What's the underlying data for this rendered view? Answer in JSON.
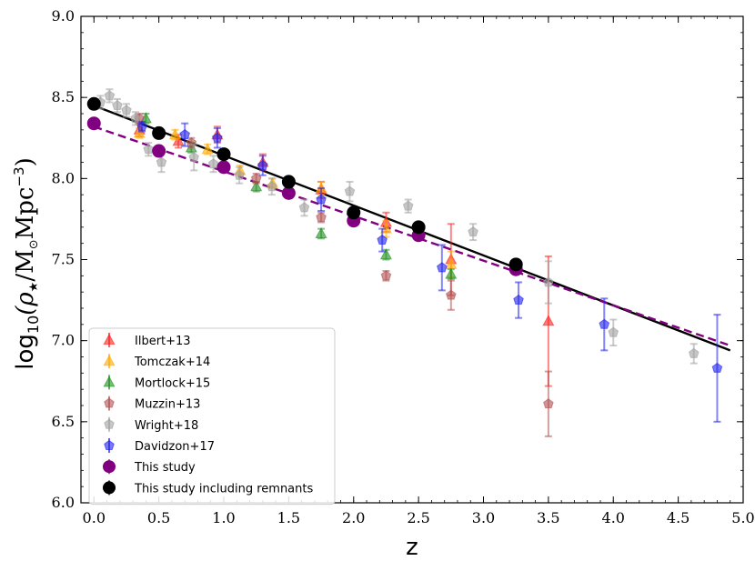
{
  "chart_data": {
    "type": "scatter",
    "title": "",
    "xlabel": "z",
    "ylabel": "log10(ρ★ / M⊙ Mpc⁻³)",
    "ylabel_main": "log",
    "ylabel_sub": "10",
    "ylabel_open": "(ρ",
    "ylabel_star": "★",
    "ylabel_mid": "/M",
    "ylabel_sun": "⊙",
    "ylabel_unit": "Mpc",
    "ylabel_exp": "−3",
    "ylabel_close": ")",
    "xlim": [
      -0.1,
      5.0
    ],
    "ylim": [
      6.0,
      9.0
    ],
    "xticks": [
      0.0,
      0.5,
      1.0,
      1.5,
      2.0,
      2.5,
      3.0,
      3.5,
      4.0,
      4.5,
      5.0
    ],
    "xtick_labels": [
      "0.0",
      "0.5",
      "1.0",
      "1.5",
      "2.0",
      "2.5",
      "3.0",
      "3.5",
      "4.0",
      "4.5",
      "5.0"
    ],
    "yticks": [
      6.0,
      6.5,
      7.0,
      7.5,
      8.0,
      8.5,
      9.0
    ],
    "ytick_labels": [
      "6.0",
      "6.5",
      "7.0",
      "7.5",
      "8.0",
      "8.5",
      "9.0"
    ],
    "grid": false,
    "legend_position": "lower-left",
    "fit_lines": [
      {
        "name": "fit including remnants",
        "color": "#000000",
        "style": "solid",
        "x": [
          0.0,
          4.9
        ],
        "y": [
          8.45,
          6.94
        ]
      },
      {
        "name": "fit this study",
        "color": "#800080",
        "style": "dashed",
        "x": [
          0.0,
          4.9
        ],
        "y": [
          8.32,
          6.97
        ]
      }
    ],
    "series": [
      {
        "name": "Ilbert+13",
        "marker": "triangle",
        "color": "#ff2020",
        "points": [
          {
            "x": 0.35,
            "y": 8.3,
            "err": 0.04
          },
          {
            "x": 0.65,
            "y": 8.23,
            "err": 0.04
          },
          {
            "x": 0.95,
            "y": 8.27,
            "err": 0.05
          },
          {
            "x": 1.3,
            "y": 8.1,
            "err": 0.05
          },
          {
            "x": 1.75,
            "y": 7.93,
            "err": 0.05
          },
          {
            "x": 2.25,
            "y": 7.73,
            "err": 0.06
          },
          {
            "x": 2.75,
            "y": 7.5,
            "err": 0.22
          },
          {
            "x": 3.5,
            "y": 7.12,
            "err": 0.4
          }
        ]
      },
      {
        "name": "Tomczak+14",
        "marker": "triangle",
        "color": "#ffaa00",
        "points": [
          {
            "x": 0.35,
            "y": 8.28,
            "err": 0.03
          },
          {
            "x": 0.625,
            "y": 8.27,
            "err": 0.03
          },
          {
            "x": 0.875,
            "y": 8.18,
            "err": 0.03
          },
          {
            "x": 1.125,
            "y": 8.05,
            "err": 0.03
          },
          {
            "x": 1.375,
            "y": 7.97,
            "err": 0.03
          },
          {
            "x": 1.75,
            "y": 7.94,
            "err": 0.04
          },
          {
            "x": 2.25,
            "y": 7.69,
            "err": 0.05
          },
          {
            "x": 2.75,
            "y": 7.47,
            "err": 0.08
          }
        ]
      },
      {
        "name": "Mortlock+15",
        "marker": "triangle",
        "color": "#209020",
        "points": [
          {
            "x": 0.4,
            "y": 8.37,
            "err": 0.03
          },
          {
            "x": 0.75,
            "y": 8.19,
            "err": 0.03
          },
          {
            "x": 1.25,
            "y": 7.95,
            "err": 0.03
          },
          {
            "x": 1.75,
            "y": 7.66,
            "err": 0.03
          },
          {
            "x": 2.25,
            "y": 7.53,
            "err": 0.03
          },
          {
            "x": 2.75,
            "y": 7.41,
            "err": 0.03
          }
        ]
      },
      {
        "name": "Muzzin+13",
        "marker": "pentagon",
        "color": "#b05050",
        "points": [
          {
            "x": 0.35,
            "y": 8.37,
            "err": 0.03
          },
          {
            "x": 0.75,
            "y": 8.22,
            "err": 0.03
          },
          {
            "x": 1.25,
            "y": 8.0,
            "err": 0.03
          },
          {
            "x": 1.75,
            "y": 7.76,
            "err": 0.03
          },
          {
            "x": 2.25,
            "y": 7.4,
            "err": 0.03
          },
          {
            "x": 2.75,
            "y": 7.28,
            "err": 0.09
          },
          {
            "x": 3.5,
            "y": 6.61,
            "err": 0.2
          }
        ]
      },
      {
        "name": "Wright+18",
        "marker": "pentagon",
        "color": "#a0a0a0",
        "points": [
          {
            "x": 0.05,
            "y": 8.47,
            "err": 0.04
          },
          {
            "x": 0.12,
            "y": 8.51,
            "err": 0.04
          },
          {
            "x": 0.18,
            "y": 8.45,
            "err": 0.04
          },
          {
            "x": 0.25,
            "y": 8.42,
            "err": 0.04
          },
          {
            "x": 0.32,
            "y": 8.37,
            "err": 0.04
          },
          {
            "x": 0.42,
            "y": 8.18,
            "err": 0.04
          },
          {
            "x": 0.52,
            "y": 8.1,
            "err": 0.06
          },
          {
            "x": 0.77,
            "y": 8.13,
            "err": 0.08
          },
          {
            "x": 0.92,
            "y": 8.09,
            "err": 0.05
          },
          {
            "x": 1.12,
            "y": 8.02,
            "err": 0.05
          },
          {
            "x": 1.37,
            "y": 7.95,
            "err": 0.05
          },
          {
            "x": 1.62,
            "y": 7.82,
            "err": 0.05
          },
          {
            "x": 1.97,
            "y": 7.92,
            "err": 0.06
          },
          {
            "x": 2.42,
            "y": 7.83,
            "err": 0.04
          },
          {
            "x": 2.92,
            "y": 7.67,
            "err": 0.05
          },
          {
            "x": 3.5,
            "y": 7.36,
            "err": 0.13
          },
          {
            "x": 4.0,
            "y": 7.05,
            "err": 0.08
          },
          {
            "x": 4.62,
            "y": 6.92,
            "err": 0.06
          }
        ]
      },
      {
        "name": "Davidzon+17",
        "marker": "pentagon",
        "color": "#2020ee",
        "points": [
          {
            "x": 0.37,
            "y": 8.32,
            "err": 0.03
          },
          {
            "x": 0.7,
            "y": 8.27,
            "err": 0.07
          },
          {
            "x": 0.95,
            "y": 8.25,
            "err": 0.06
          },
          {
            "x": 1.3,
            "y": 8.08,
            "err": 0.06
          },
          {
            "x": 1.75,
            "y": 7.87,
            "err": 0.07
          },
          {
            "x": 2.22,
            "y": 7.62,
            "err": 0.07
          },
          {
            "x": 2.68,
            "y": 7.45,
            "err": 0.14
          },
          {
            "x": 3.27,
            "y": 7.25,
            "err": 0.11
          },
          {
            "x": 3.93,
            "y": 7.1,
            "err": 0.16
          },
          {
            "x": 4.8,
            "y": 6.83,
            "err": 0.33
          }
        ]
      },
      {
        "name": "This study",
        "marker": "circle",
        "color": "#800080",
        "points": [
          {
            "x": 0.0,
            "y": 8.34,
            "err": 0.0
          },
          {
            "x": 0.5,
            "y": 8.17,
            "err": 0.0
          },
          {
            "x": 1.0,
            "y": 8.07,
            "err": 0.0
          },
          {
            "x": 1.5,
            "y": 7.91,
            "err": 0.0
          },
          {
            "x": 2.0,
            "y": 7.74,
            "err": 0.0
          },
          {
            "x": 2.5,
            "y": 7.65,
            "err": 0.0
          },
          {
            "x": 3.25,
            "y": 7.44,
            "err": 0.0
          }
        ]
      },
      {
        "name": "This study including remnants",
        "marker": "circle",
        "color": "#000000",
        "points": [
          {
            "x": 0.0,
            "y": 8.46,
            "err": 0.0
          },
          {
            "x": 0.5,
            "y": 8.28,
            "err": 0.0
          },
          {
            "x": 1.0,
            "y": 8.15,
            "err": 0.0
          },
          {
            "x": 1.5,
            "y": 7.98,
            "err": 0.0
          },
          {
            "x": 2.0,
            "y": 7.79,
            "err": 0.0
          },
          {
            "x": 2.5,
            "y": 7.7,
            "err": 0.0
          },
          {
            "x": 3.25,
            "y": 7.47,
            "err": 0.0
          }
        ]
      }
    ]
  }
}
